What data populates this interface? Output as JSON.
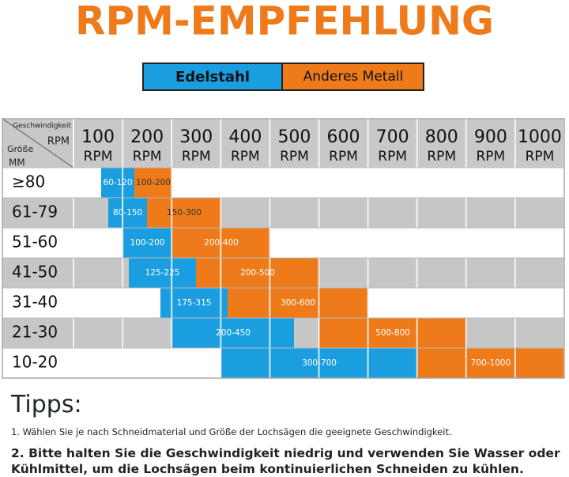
{
  "title": "RPM-EMPFEHLUNG",
  "legend": [
    "Edelstahl",
    "Anderes Metall"
  ],
  "table": {
    "corner": {
      "speed": "Geschwindigkeit",
      "rpm": "RPM",
      "size": "Größe",
      "unit": "MM"
    },
    "columns": [
      {
        "value": "100",
        "unit": "RPM"
      },
      {
        "value": "200",
        "unit": "RPM"
      },
      {
        "value": "300",
        "unit": "RPM"
      },
      {
        "value": "400",
        "unit": "RPM"
      },
      {
        "value": "500",
        "unit": "RPM"
      },
      {
        "value": "600",
        "unit": "RPM"
      },
      {
        "value": "700",
        "unit": "RPM"
      },
      {
        "value": "800",
        "unit": "RPM"
      },
      {
        "value": "900",
        "unit": "RPM"
      },
      {
        "value": "1000",
        "unit": "RPM"
      }
    ],
    "rows": [
      {
        "size": "≥80",
        "steel": "60-120",
        "other": "100-200"
      },
      {
        "size": "61-79",
        "steel": "80-150",
        "other": "150-300"
      },
      {
        "size": "51-60",
        "steel": "100-200",
        "other": "200-400"
      },
      {
        "size": "41-50",
        "steel": "125-225",
        "other": "200-500"
      },
      {
        "size": "31-40",
        "steel": "175-315",
        "other": "300-600"
      },
      {
        "size": "21-30",
        "steel": "200-450",
        "other": "500-800"
      },
      {
        "size": "10-20",
        "steel": "300-700",
        "other": "700-1000"
      }
    ]
  },
  "tips": {
    "heading": "Tipps:",
    "items": [
      "1. Wählen Sie je nach Schneidmaterial und Größe der Lochsägen die geeignete Geschwindigkeit.",
      "2. Bitte halten Sie die Geschwindigkeit niedrig und verwenden Sie Wasser oder Kühlmittel, um die Lochsägen beim kontinuierlichen Schneiden zu kühlen."
    ]
  }
}
